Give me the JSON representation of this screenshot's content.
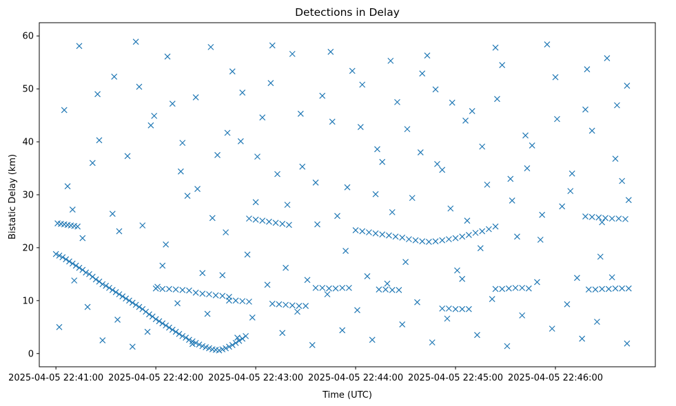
{
  "chart_data": {
    "type": "scatter",
    "title": "Detections in Delay",
    "xlabel": "Time (UTC)",
    "ylabel": "Bistatic Delay (km)",
    "x_unit": "seconds since 2025-04-05 22:41:00 UTC",
    "xlim": [
      -10,
      360
    ],
    "ylim": [
      -2.5,
      62.5
    ],
    "x_ticks": [
      0,
      60,
      120,
      180,
      240,
      300
    ],
    "x_tick_labels": [
      "2025-04-05 22:41:00",
      "2025-04-05 22:42:00",
      "2025-04-05 22:43:00",
      "2025-04-05 22:44:00",
      "2025-04-05 22:45:00",
      "2025-04-05 22:46:00"
    ],
    "y_ticks": [
      0,
      10,
      20,
      30,
      40,
      50,
      60
    ],
    "y_tick_labels": [
      "0",
      "10",
      "20",
      "30",
      "40",
      "50",
      "60"
    ],
    "grid": false,
    "legend": "none",
    "marker": "x",
    "series": [
      {
        "name": "detections",
        "color": "#1f77b4",
        "points": [
          [
            0,
            18.8
          ],
          [
            2,
            18.5
          ],
          [
            4,
            18.2
          ],
          [
            6,
            17.8
          ],
          [
            8,
            17.4
          ],
          [
            10,
            17.0
          ],
          [
            12,
            16.6
          ],
          [
            14,
            16.2
          ],
          [
            16,
            15.8
          ],
          [
            18,
            15.3
          ],
          [
            20,
            15.0
          ],
          [
            22,
            14.5
          ],
          [
            24,
            14.0
          ],
          [
            26,
            13.6
          ],
          [
            28,
            13.1
          ],
          [
            30,
            12.8
          ],
          [
            32,
            12.4
          ],
          [
            34,
            12.0
          ],
          [
            36,
            11.6
          ],
          [
            38,
            11.2
          ],
          [
            40,
            10.8
          ],
          [
            42,
            10.4
          ],
          [
            44,
            10.0
          ],
          [
            46,
            9.6
          ],
          [
            48,
            9.2
          ],
          [
            50,
            8.8
          ],
          [
            52,
            8.4
          ],
          [
            54,
            7.9
          ],
          [
            56,
            7.4
          ],
          [
            58,
            7.0
          ],
          [
            60,
            6.5
          ],
          [
            62,
            6.1
          ],
          [
            64,
            5.7
          ],
          [
            66,
            5.3
          ],
          [
            68,
            4.9
          ],
          [
            70,
            4.5
          ],
          [
            72,
            4.1
          ],
          [
            74,
            3.7
          ],
          [
            76,
            3.3
          ],
          [
            78,
            3.0
          ],
          [
            80,
            2.6
          ],
          [
            82,
            2.3
          ],
          [
            84,
            2.0
          ],
          [
            86,
            1.7
          ],
          [
            88,
            1.4
          ],
          [
            90,
            1.2
          ],
          [
            92,
            1.0
          ],
          [
            94,
            0.8
          ],
          [
            96,
            0.7
          ],
          [
            98,
            0.6
          ],
          [
            100,
            0.8
          ],
          [
            102,
            1.0
          ],
          [
            104,
            1.3
          ],
          [
            106,
            1.6
          ],
          [
            108,
            2.0
          ],
          [
            110,
            2.4
          ],
          [
            112,
            2.8
          ],
          [
            114,
            3.3
          ],
          [
            1,
            24.6
          ],
          [
            3,
            24.5
          ],
          [
            5,
            24.4
          ],
          [
            7,
            24.3
          ],
          [
            9,
            24.2
          ],
          [
            11,
            24.1
          ],
          [
            13,
            24.0
          ],
          [
            60,
            12.3
          ],
          [
            64,
            12.2
          ],
          [
            68,
            12.2
          ],
          [
            72,
            12.1
          ],
          [
            76,
            12.0
          ],
          [
            80,
            11.9
          ],
          [
            84,
            11.5
          ],
          [
            88,
            11.3
          ],
          [
            92,
            11.2
          ],
          [
            96,
            11.0
          ],
          [
            100,
            10.9
          ],
          [
            104,
            10.7
          ],
          [
            104,
            10.0
          ],
          [
            108,
            10.0
          ],
          [
            112,
            9.9
          ],
          [
            116,
            9.8
          ],
          [
            116,
            25.5
          ],
          [
            120,
            25.3
          ],
          [
            124,
            25.1
          ],
          [
            128,
            24.9
          ],
          [
            132,
            24.7
          ],
          [
            136,
            24.5
          ],
          [
            140,
            24.3
          ],
          [
            180,
            23.3
          ],
          [
            184,
            23.1
          ],
          [
            188,
            22.9
          ],
          [
            192,
            22.7
          ],
          [
            196,
            22.5
          ],
          [
            200,
            22.3
          ],
          [
            204,
            22.1
          ],
          [
            208,
            21.9
          ],
          [
            212,
            21.6
          ],
          [
            216,
            21.4
          ],
          [
            220,
            21.2
          ],
          [
            224,
            21.1
          ],
          [
            228,
            21.2
          ],
          [
            232,
            21.4
          ],
          [
            236,
            21.6
          ],
          [
            240,
            21.8
          ],
          [
            244,
            22.1
          ],
          [
            248,
            22.4
          ],
          [
            252,
            22.8
          ],
          [
            256,
            23.1
          ],
          [
            260,
            23.5
          ],
          [
            264,
            24.0
          ],
          [
            318,
            25.9
          ],
          [
            322,
            25.8
          ],
          [
            326,
            25.7
          ],
          [
            330,
            25.6
          ],
          [
            334,
            25.5
          ],
          [
            338,
            25.5
          ],
          [
            342,
            25.4
          ],
          [
            130,
            9.4
          ],
          [
            134,
            9.3
          ],
          [
            138,
            9.2
          ],
          [
            142,
            9.1
          ],
          [
            146,
            9.0
          ],
          [
            150,
            9.0
          ],
          [
            156,
            12.4
          ],
          [
            160,
            12.4
          ],
          [
            164,
            12.3
          ],
          [
            168,
            12.3
          ],
          [
            172,
            12.4
          ],
          [
            176,
            12.4
          ],
          [
            194,
            12.1
          ],
          [
            198,
            12.1
          ],
          [
            202,
            12.0
          ],
          [
            206,
            12.0
          ],
          [
            232,
            8.5
          ],
          [
            236,
            8.5
          ],
          [
            240,
            8.4
          ],
          [
            244,
            8.4
          ],
          [
            248,
            8.4
          ],
          [
            264,
            12.2
          ],
          [
            268,
            12.2
          ],
          [
            272,
            12.3
          ],
          [
            276,
            12.4
          ],
          [
            280,
            12.4
          ],
          [
            284,
            12.3
          ],
          [
            320,
            12.1
          ],
          [
            324,
            12.1
          ],
          [
            328,
            12.2
          ],
          [
            332,
            12.2
          ],
          [
            336,
            12.3
          ],
          [
            340,
            12.3
          ],
          [
            344,
            12.3
          ],
          [
            10,
            27.2
          ],
          [
            22,
            36.0
          ],
          [
            35,
            52.3
          ],
          [
            48,
            58.9
          ],
          [
            57,
            43.1
          ],
          [
            66,
            20.6
          ],
          [
            75,
            34.4
          ],
          [
            84,
            48.4
          ],
          [
            93,
            57.9
          ],
          [
            102,
            22.9
          ],
          [
            111,
            40.1
          ],
          [
            120,
            28.6
          ],
          [
            129,
            51.1
          ],
          [
            138,
            16.2
          ],
          [
            147,
            45.3
          ],
          [
            156,
            32.3
          ],
          [
            165,
            57.0
          ],
          [
            174,
            19.4
          ],
          [
            183,
            42.8
          ],
          [
            192,
            30.1
          ],
          [
            201,
            55.3
          ],
          [
            210,
            17.3
          ],
          [
            219,
            38.0
          ],
          [
            228,
            49.9
          ],
          [
            237,
            27.4
          ],
          [
            246,
            44.0
          ],
          [
            255,
            19.9
          ],
          [
            264,
            57.8
          ],
          [
            273,
            33.0
          ],
          [
            282,
            41.2
          ],
          [
            291,
            21.5
          ],
          [
            300,
            52.2
          ],
          [
            309,
            30.7
          ],
          [
            318,
            46.1
          ],
          [
            327,
            18.3
          ],
          [
            336,
            36.8
          ],
          [
            343,
            50.6
          ],
          [
            5,
            46.0
          ],
          [
            14,
            58.1
          ],
          [
            26,
            40.3
          ],
          [
            38,
            23.1
          ],
          [
            50,
            50.4
          ],
          [
            61,
            12.6
          ],
          [
            70,
            47.2
          ],
          [
            79,
            29.8
          ],
          [
            88,
            15.2
          ],
          [
            97,
            37.5
          ],
          [
            106,
            53.3
          ],
          [
            115,
            18.7
          ],
          [
            124,
            44.6
          ],
          [
            133,
            33.9
          ],
          [
            142,
            56.6
          ],
          [
            151,
            13.9
          ],
          [
            160,
            48.7
          ],
          [
            169,
            26.0
          ],
          [
            178,
            53.4
          ],
          [
            187,
            14.6
          ],
          [
            196,
            36.2
          ],
          [
            205,
            47.5
          ],
          [
            214,
            29.4
          ],
          [
            223,
            56.3
          ],
          [
            232,
            34.7
          ],
          [
            241,
            15.7
          ],
          [
            250,
            45.8
          ],
          [
            259,
            31.9
          ],
          [
            268,
            54.5
          ],
          [
            277,
            22.1
          ],
          [
            286,
            39.3
          ],
          [
            295,
            58.4
          ],
          [
            304,
            27.8
          ],
          [
            313,
            14.3
          ],
          [
            322,
            42.1
          ],
          [
            331,
            55.8
          ],
          [
            340,
            32.6
          ],
          [
            2,
            5.0
          ],
          [
            11,
            13.8
          ],
          [
            19,
            8.8
          ],
          [
            28,
            2.5
          ],
          [
            37,
            6.4
          ],
          [
            46,
            1.3
          ],
          [
            55,
            4.1
          ],
          [
            64,
            16.6
          ],
          [
            73,
            9.5
          ],
          [
            82,
            1.8
          ],
          [
            91,
            7.5
          ],
          [
            100,
            14.8
          ],
          [
            109,
            3.0
          ],
          [
            118,
            6.8
          ],
          [
            127,
            13.0
          ],
          [
            136,
            3.9
          ],
          [
            145,
            7.9
          ],
          [
            154,
            1.6
          ],
          [
            163,
            11.2
          ],
          [
            172,
            4.4
          ],
          [
            181,
            8.2
          ],
          [
            190,
            2.6
          ],
          [
            199,
            13.2
          ],
          [
            208,
            5.5
          ],
          [
            217,
            9.7
          ],
          [
            226,
            2.1
          ],
          [
            235,
            6.6
          ],
          [
            244,
            14.1
          ],
          [
            253,
            3.5
          ],
          [
            262,
            10.3
          ],
          [
            271,
            1.4
          ],
          [
            280,
            7.2
          ],
          [
            289,
            13.5
          ],
          [
            298,
            4.7
          ],
          [
            307,
            9.3
          ],
          [
            316,
            2.8
          ],
          [
            325,
            6.0
          ],
          [
            334,
            14.4
          ],
          [
            343,
            1.9
          ],
          [
            7,
            31.6
          ],
          [
            16,
            21.8
          ],
          [
            25,
            49.0
          ],
          [
            34,
            26.4
          ],
          [
            43,
            37.3
          ],
          [
            52,
            24.2
          ],
          [
            59,
            44.9
          ],
          [
            67,
            56.1
          ],
          [
            76,
            39.8
          ],
          [
            85,
            31.1
          ],
          [
            94,
            25.6
          ],
          [
            103,
            41.7
          ],
          [
            112,
            49.3
          ],
          [
            121,
            37.2
          ],
          [
            130,
            58.2
          ],
          [
            139,
            28.1
          ],
          [
            148,
            35.3
          ],
          [
            157,
            24.4
          ],
          [
            166,
            43.8
          ],
          [
            175,
            31.4
          ],
          [
            184,
            50.8
          ],
          [
            193,
            38.6
          ],
          [
            202,
            26.7
          ],
          [
            211,
            42.4
          ],
          [
            220,
            52.9
          ],
          [
            229,
            35.8
          ],
          [
            238,
            47.4
          ],
          [
            247,
            25.1
          ],
          [
            256,
            39.1
          ],
          [
            265,
            48.1
          ],
          [
            274,
            28.9
          ],
          [
            283,
            35.0
          ],
          [
            292,
            26.2
          ],
          [
            301,
            44.3
          ],
          [
            310,
            34.0
          ],
          [
            319,
            53.7
          ],
          [
            328,
            24.8
          ],
          [
            337,
            46.9
          ],
          [
            344,
            29.0
          ]
        ]
      }
    ]
  }
}
